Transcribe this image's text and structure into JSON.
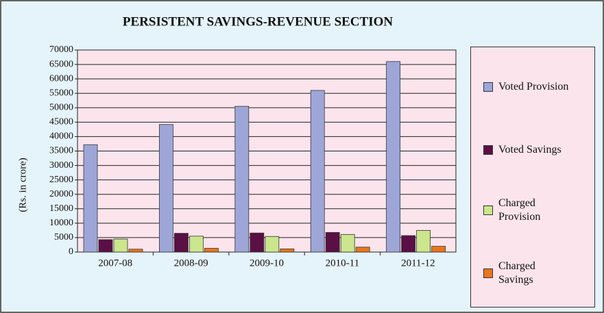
{
  "chart_data": {
    "type": "bar",
    "title": "PERSISTENT SAVINGS-REVENUE SECTION",
    "y_label": "(Rs. in crore)",
    "categories": [
      "2007-08",
      "2008-09",
      "2009-10",
      "2010-11",
      "2011-12"
    ],
    "series": [
      {
        "name": "Voted Provision",
        "color": "#9ea6d8",
        "values": [
          37200,
          44200,
          50500,
          56000,
          66000
        ]
      },
      {
        "name": "Voted Savings",
        "color": "#5a0f45",
        "values": [
          4300,
          6500,
          6600,
          6800,
          5700
        ]
      },
      {
        "name": "Charged Provision",
        "color": "#cbe68c",
        "values": [
          4500,
          5500,
          5400,
          6100,
          7500
        ]
      },
      {
        "name": "Charged Savings",
        "color": "#e8761e",
        "values": [
          1000,
          1300,
          1100,
          1700,
          2000
        ]
      }
    ],
    "ylim": [
      0,
      70000
    ],
    "yticks": [
      0,
      5000,
      10000,
      15000,
      20000,
      25000,
      30000,
      35000,
      40000,
      45000,
      50000,
      55000,
      60000,
      65000,
      70000
    ],
    "grid": true
  }
}
